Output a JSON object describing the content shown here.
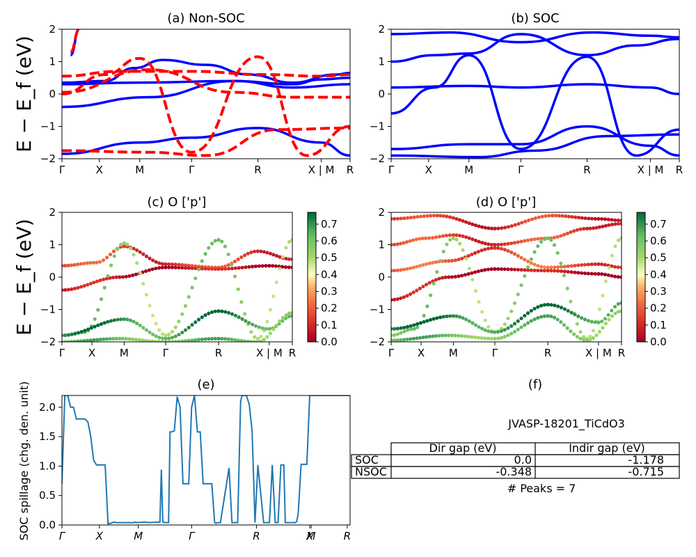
{
  "colors": {
    "soc_blue": "#0000ff",
    "nsoc_red": "#ff0000",
    "spillage_line": "#1f77b4",
    "cmap_low": "#a50026",
    "cmap_mid": "#ffffbf",
    "cmap_high": "#006837"
  },
  "chart_data": [
    {
      "id": "a",
      "type": "line",
      "title": "(a) Non-SOC",
      "ylabel": "E − E_f (eV)",
      "ylim": [
        -2,
        2
      ],
      "yticks": [
        "2",
        "1",
        "0",
        "−1",
        "−2"
      ],
      "kpath": [
        "Γ",
        "X",
        "M",
        "Γ",
        "R",
        "X | M",
        "R"
      ],
      "series": [
        {
          "style": "solid",
          "color": "#0000ff",
          "bands": [
            {
              "x": [
                0,
                0.15,
                0.25,
                0.35
              ],
              "y": [
                0.35,
                0.4,
                0.8,
                1.05
              ]
            },
            {
              "x": [
                0.35,
                0.5,
                0.65,
                0.8,
                0.95,
                1.0
              ],
              "y": [
                1.05,
                0.9,
                0.6,
                0.35,
                0.6,
                0.65
              ]
            },
            {
              "x": [
                0,
                0.25,
                0.6,
                0.8,
                0.9,
                1.0
              ],
              "y": [
                0.3,
                0.35,
                0.4,
                0.3,
                0.45,
                0.5
              ]
            },
            {
              "x": [
                0,
                0.3,
                0.6,
                0.8,
                1.0
              ],
              "y": [
                -0.4,
                -0.1,
                0.4,
                0.2,
                0.3
              ]
            },
            {
              "x": [
                0,
                0.27,
                0.45,
                0.68,
                0.9,
                1.0
              ],
              "y": [
                -1.85,
                -1.5,
                -1.35,
                -1.05,
                -1.5,
                -1.9
              ]
            },
            {
              "x": [
                0.03,
                0.06
              ],
              "y": [
                1.2,
                2.0
              ]
            }
          ]
        },
        {
          "style": "dashed",
          "color": "#ff0000",
          "bands": [
            {
              "x": [
                0,
                0.15,
                0.27,
                0.45,
                0.68,
                0.85,
                1.0
              ],
              "y": [
                0.0,
                0.6,
                1.1,
                -1.8,
                1.15,
                -1.9,
                -1.0
              ]
            },
            {
              "x": [
                0,
                0.2,
                0.45,
                0.7,
                0.9,
                1.0
              ],
              "y": [
                0.55,
                0.7,
                0.7,
                0.6,
                0.55,
                0.6
              ]
            },
            {
              "x": [
                0,
                0.3,
                0.6,
                0.8,
                1.0
              ],
              "y": [
                0.05,
                0.75,
                0.05,
                -0.1,
                -0.1
              ]
            },
            {
              "x": [
                0,
                0.3,
                0.5,
                0.75,
                1.0
              ],
              "y": [
                -1.75,
                -1.8,
                -1.9,
                -1.1,
                -1.05
              ]
            },
            {
              "x": [
                0.03,
                0.06
              ],
              "y": [
                1.3,
                2.0
              ]
            }
          ]
        }
      ]
    },
    {
      "id": "b",
      "type": "line",
      "title": "(b) SOC",
      "ylim": [
        -2,
        2
      ],
      "yticks": [
        "2",
        "1",
        "0",
        "−1",
        "−2"
      ],
      "kpath": [
        "Γ",
        "X",
        "M",
        "Γ",
        "R",
        "X | M",
        "R"
      ],
      "series": [
        {
          "style": "solid",
          "color": "#0000ff",
          "bands": [
            {
              "x": [
                0,
                0.15,
                0.27,
                0.45,
                0.68,
                0.85,
                1.0
              ],
              "y": [
                1.0,
                1.2,
                1.25,
                1.85,
                1.2,
                1.5,
                1.7
              ]
            },
            {
              "x": [
                0,
                0.2,
                0.45,
                0.7,
                0.9,
                1.0
              ],
              "y": [
                1.85,
                1.9,
                1.6,
                1.9,
                1.8,
                1.75
              ]
            },
            {
              "x": [
                0,
                0.27,
                0.45,
                0.68,
                0.9,
                1.0
              ],
              "y": [
                0.2,
                0.25,
                0.2,
                0.3,
                0.2,
                0.0
              ]
            },
            {
              "x": [
                0,
                0.15,
                0.27,
                0.45,
                0.68,
                0.85,
                1.0
              ],
              "y": [
                -0.6,
                0.2,
                1.2,
                -1.7,
                1.15,
                -1.9,
                -1.1
              ]
            },
            {
              "x": [
                0,
                0.27,
                0.45,
                0.68,
                0.9,
                1.0
              ],
              "y": [
                -1.7,
                -1.55,
                -1.55,
                -1.0,
                -1.6,
                -1.9
              ]
            },
            {
              "x": [
                0,
                0.3,
                0.5,
                0.75,
                1.0
              ],
              "y": [
                -1.9,
                -1.95,
                -1.75,
                -1.3,
                -1.25
              ]
            }
          ]
        }
      ]
    },
    {
      "id": "c",
      "type": "scatter",
      "title": "(c)  O ['p']",
      "ylabel": "E − E_f (eV)",
      "ylim": [
        -2,
        2
      ],
      "yticks": [
        "2",
        "1",
        "0",
        "−1",
        "−2"
      ],
      "kpath": [
        "Γ",
        "X",
        "M",
        "Γ",
        "R",
        "X | M",
        "R"
      ],
      "colorbar": {
        "ticks": [
          "0.7",
          "0.6",
          "0.5",
          "0.4",
          "0.3",
          "0.2",
          "0.1",
          "0.0"
        ],
        "range": [
          0.0,
          0.77
        ]
      },
      "bands": [
        {
          "x": [
            0,
            0.15,
            0.27,
            0.45,
            0.68,
            0.85,
            1.0
          ],
          "y": [
            0.35,
            0.45,
            0.95,
            0.4,
            0.3,
            0.8,
            0.55
          ],
          "w": 0.15
        },
        {
          "x": [
            0,
            0.25,
            0.45,
            0.68,
            0.9,
            1.0
          ],
          "y": [
            -0.4,
            0.0,
            0.3,
            0.25,
            0.35,
            0.3
          ],
          "w": 0.05
        },
        {
          "x": [
            0,
            0.1,
            0.27,
            0.45,
            0.68,
            0.85,
            1.0
          ],
          "y": [
            -1.8,
            -1.7,
            1.05,
            -1.8,
            1.15,
            -1.9,
            1.15
          ],
          "w": 0.55
        },
        {
          "x": [
            0,
            0.27,
            0.45,
            0.68,
            0.9,
            1.0
          ],
          "y": [
            -1.8,
            -1.3,
            -1.9,
            -1.05,
            -1.6,
            -1.2
          ],
          "w": 0.7
        },
        {
          "x": [
            0,
            0.25,
            0.45,
            0.68,
            0.85,
            1.0
          ],
          "y": [
            -2.0,
            -1.9,
            -2.0,
            -1.9,
            -2.0,
            -1.1
          ],
          "w": 0.6
        }
      ]
    },
    {
      "id": "d",
      "type": "scatter",
      "title": "(d) O ['p']",
      "ylim": [
        -2,
        2
      ],
      "yticks": [
        "2",
        "1",
        "0",
        "−1",
        "−2"
      ],
      "kpath": [
        "Γ",
        "X",
        "M",
        "Γ",
        "R",
        "X | M",
        "R"
      ],
      "colorbar": {
        "ticks": [
          "0.7",
          "0.6",
          "0.5",
          "0.4",
          "0.3",
          "0.2",
          "0.1",
          "0.0"
        ],
        "range": [
          0.0,
          0.77
        ]
      },
      "bands": [
        {
          "x": [
            0,
            0.2,
            0.45,
            0.7,
            0.9,
            1.0
          ],
          "y": [
            1.8,
            1.9,
            1.5,
            1.9,
            1.8,
            1.75
          ],
          "w": 0.12
        },
        {
          "x": [
            0,
            0.15,
            0.27,
            0.45,
            0.68,
            0.85,
            1.0
          ],
          "y": [
            1.0,
            1.2,
            1.3,
            1.0,
            1.2,
            1.5,
            1.65
          ],
          "w": 0.15
        },
        {
          "x": [
            0,
            0.25,
            0.45,
            0.68,
            0.9,
            1.0
          ],
          "y": [
            0.2,
            0.5,
            0.9,
            0.3,
            0.4,
            0.3
          ],
          "w": 0.18
        },
        {
          "x": [
            0,
            0.25,
            0.45,
            0.68,
            0.9,
            1.0
          ],
          "y": [
            -0.7,
            0.0,
            0.25,
            0.2,
            0.1,
            0.0
          ],
          "w": 0.04
        },
        {
          "x": [
            0,
            0.1,
            0.27,
            0.45,
            0.68,
            0.85,
            1.0
          ],
          "y": [
            -1.8,
            -1.6,
            1.2,
            -1.7,
            1.2,
            -1.9,
            1.2
          ],
          "w": 0.55
        },
        {
          "x": [
            0,
            0.27,
            0.45,
            0.68,
            0.9,
            1.0
          ],
          "y": [
            -1.6,
            -1.2,
            -1.7,
            -0.85,
            -1.4,
            -0.8
          ],
          "w": 0.72
        },
        {
          "x": [
            0,
            0.25,
            0.45,
            0.68,
            0.85,
            1.0
          ],
          "y": [
            -1.95,
            -1.8,
            -1.9,
            -1.2,
            -1.95,
            -1.05
          ],
          "w": 0.6
        }
      ]
    },
    {
      "id": "e",
      "type": "line",
      "title": "(e)",
      "ylabel": "SOC spillage (chg. den. unit)",
      "ylim": [
        0,
        2.2
      ],
      "yticks": [
        "0.0",
        "0.5",
        "1.0",
        "1.5",
        "2.0"
      ],
      "kpath": [
        "Γ",
        "X",
        "M",
        "Γ",
        "R",
        "X",
        "M",
        "R"
      ],
      "series": [
        {
          "name": "",
          "color": "#1f77b4",
          "x": [
            0,
            0.01,
            0.02,
            0.03,
            0.04,
            0.05,
            0.06,
            0.08,
            0.09,
            0.1,
            0.11,
            0.12,
            0.13,
            0.14,
            0.15,
            0.16,
            0.17,
            0.18,
            0.19,
            0.25,
            0.255,
            0.26,
            0.29,
            0.3,
            0.34,
            0.345,
            0.35,
            0.36,
            0.37,
            0.375,
            0.38,
            0.39,
            0.4,
            0.41,
            0.42,
            0.43,
            0.44,
            0.45,
            0.46,
            0.47,
            0.48,
            0.49,
            0.5,
            0.52,
            0.53,
            0.535,
            0.54,
            0.55,
            0.58,
            0.59,
            0.6,
            0.61,
            0.62,
            0.625,
            0.63,
            0.64,
            0.65,
            0.66,
            0.67,
            0.68,
            0.7,
            0.71,
            0.72,
            0.73,
            0.74,
            0.745,
            0.75,
            0.76,
            0.77,
            0.775,
            0.78,
            0.79,
            0.8,
            0.81,
            0.815,
            0.82,
            0.83,
            0.84,
            0.85,
            0.86,
            0.87,
            0.88,
            0.9,
            0.92,
            0.93,
            0.95,
            0.96,
            0.97,
            0.98,
            0.99,
            1.0
          ],
          "y": [
            0.7,
            2.2,
            2.2,
            2.0,
            2.0,
            1.8,
            1.8,
            1.8,
            1.75,
            1.5,
            1.1,
            1.02,
            1.02,
            1.02,
            1.02,
            0.02,
            0.03,
            0.05,
            0.04,
            0.04,
            0.05,
            0.04,
            0.05,
            0.04,
            0.05,
            0.94,
            0.05,
            0.04,
            0.04,
            1.58,
            1.58,
            1.6,
            2.18,
            2.0,
            0.7,
            0.7,
            0.7,
            2.0,
            2.2,
            1.58,
            1.58,
            0.7,
            0.7,
            0.7,
            0.04,
            0.03,
            0.04,
            0.04,
            0.97,
            0.04,
            0.04,
            0.04,
            2.1,
            2.2,
            2.2,
            2.2,
            2.05,
            1.6,
            0.04,
            1.02,
            0.04,
            0.04,
            0.04,
            1.02,
            0.04,
            0.04,
            0.04,
            1.02,
            1.02,
            0.04,
            0.04,
            0.04,
            0.04,
            0.04,
            0.06,
            0.2,
            1.03,
            1.03,
            1.03,
            2.2,
            2.2,
            2.2,
            2.2,
            2.2,
            2.2,
            2.2,
            2.2,
            2.2,
            2.2,
            2.2,
            2.2
          ]
        }
      ]
    }
  ],
  "panel_f": {
    "title": "(f)",
    "id_label": "JVASP-18201_TiCdO3",
    "table": {
      "headers": [
        "",
        "Dir gap (eV)",
        "Indir gap (eV)"
      ],
      "rows": [
        {
          "label": "SOC",
          "dir": "0.0",
          "indir": "-1.178"
        },
        {
          "label": "NSOC",
          "dir": "-0.348",
          "indir": "-0.715"
        }
      ]
    },
    "peaks": "# Peaks = 7"
  }
}
